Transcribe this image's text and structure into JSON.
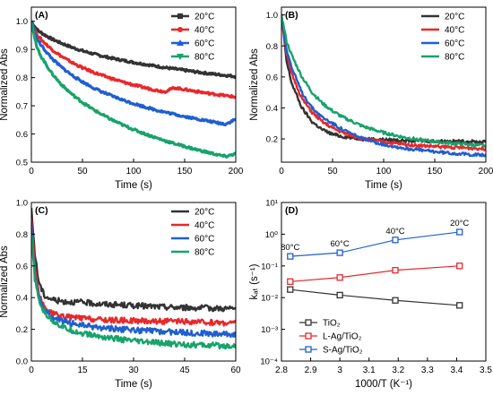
{
  "chart_data": [
    {
      "type": "line",
      "panel_label": "(A)",
      "xlabel": "Time (s)",
      "ylabel": "Normalized Abs",
      "xlim": [
        0,
        200
      ],
      "ylim": [
        0.5,
        1.05
      ],
      "xticks": [
        0,
        50,
        100,
        150,
        200
      ],
      "yticks": [
        0.5,
        0.6,
        0.7,
        0.8,
        0.9,
        1.0
      ],
      "ytick_labels": [
        "0.5",
        "0.6",
        "0.7",
        "0.8",
        "0.9",
        "1.0"
      ],
      "legend_position": "top-right",
      "series": [
        {
          "name": "20°C",
          "color": "#333333",
          "marker": "square",
          "x": [
            0,
            5,
            10,
            20,
            30,
            40,
            50,
            60,
            70,
            80,
            90,
            100,
            110,
            120,
            130,
            140,
            150,
            160,
            170,
            180,
            190,
            200
          ],
          "y": [
            1.0,
            0.972,
            0.958,
            0.937,
            0.921,
            0.907,
            0.895,
            0.885,
            0.876,
            0.868,
            0.861,
            0.854,
            0.848,
            0.842,
            0.836,
            0.831,
            0.826,
            0.821,
            0.816,
            0.812,
            0.808,
            0.804
          ]
        },
        {
          "name": "40°C",
          "color": "#e8282b",
          "marker": "circle",
          "x": [
            0,
            5,
            10,
            20,
            30,
            40,
            50,
            60,
            70,
            80,
            90,
            100,
            110,
            120,
            130,
            140,
            150,
            160,
            170,
            180,
            190,
            200
          ],
          "y": [
            1.0,
            0.955,
            0.933,
            0.9,
            0.874,
            0.853,
            0.835,
            0.82,
            0.807,
            0.795,
            0.784,
            0.774,
            0.765,
            0.757,
            0.75,
            0.764,
            0.758,
            0.752,
            0.746,
            0.741,
            0.736,
            0.731
          ]
        },
        {
          "name": "60°C",
          "color": "#1f5fd1",
          "marker": "triangle",
          "x": [
            0,
            5,
            10,
            20,
            30,
            40,
            50,
            60,
            70,
            80,
            90,
            100,
            110,
            120,
            130,
            140,
            150,
            160,
            170,
            180,
            190,
            200
          ],
          "y": [
            1.0,
            0.94,
            0.912,
            0.868,
            0.835,
            0.808,
            0.785,
            0.765,
            0.748,
            0.733,
            0.72,
            0.708,
            0.697,
            0.687,
            0.678,
            0.67,
            0.662,
            0.655,
            0.648,
            0.641,
            0.635,
            0.652
          ]
        },
        {
          "name": "80°C",
          "color": "#17a36b",
          "marker": "triangle-down",
          "x": [
            0,
            5,
            10,
            20,
            30,
            40,
            50,
            60,
            70,
            80,
            90,
            100,
            110,
            120,
            130,
            140,
            150,
            160,
            170,
            180,
            190,
            200
          ],
          "y": [
            1.0,
            0.91,
            0.872,
            0.815,
            0.773,
            0.74,
            0.712,
            0.688,
            0.667,
            0.648,
            0.631,
            0.616,
            0.602,
            0.589,
            0.577,
            0.566,
            0.556,
            0.546,
            0.537,
            0.528,
            0.52,
            0.53
          ]
        }
      ]
    },
    {
      "type": "line",
      "panel_label": "(B)",
      "xlabel": "Time (s)",
      "ylabel": "Normalized Abs",
      "xlim": [
        0,
        200
      ],
      "ylim": [
        0.05,
        1.05
      ],
      "xticks": [
        0,
        50,
        100,
        150,
        200
      ],
      "yticks": [
        0.2,
        0.4,
        0.6,
        0.8,
        1.0
      ],
      "ytick_labels": [
        "0.2",
        "0.4",
        "0.6",
        "0.8",
        "1.0"
      ],
      "legend_position": "top-right",
      "series": [
        {
          "name": "20°C",
          "color": "#333333",
          "x": [
            0,
            5,
            10,
            20,
            30,
            40,
            50,
            60,
            80,
            100,
            120,
            140,
            160,
            180,
            200
          ],
          "y": [
            1.0,
            0.7,
            0.56,
            0.4,
            0.31,
            0.26,
            0.23,
            0.215,
            0.2,
            0.195,
            0.19,
            0.187,
            0.185,
            0.183,
            0.18
          ]
        },
        {
          "name": "40°C",
          "color": "#e8282b",
          "x": [
            0,
            5,
            10,
            20,
            30,
            40,
            50,
            60,
            80,
            100,
            120,
            140,
            160,
            180,
            200
          ],
          "y": [
            1.0,
            0.75,
            0.62,
            0.46,
            0.37,
            0.31,
            0.27,
            0.24,
            0.2,
            0.18,
            0.165,
            0.155,
            0.148,
            0.142,
            0.137
          ]
        },
        {
          "name": "60°C",
          "color": "#1f5fd1",
          "x": [
            0,
            5,
            10,
            20,
            30,
            40,
            50,
            60,
            80,
            100,
            120,
            140,
            160,
            180,
            200
          ],
          "y": [
            1.0,
            0.78,
            0.66,
            0.5,
            0.4,
            0.34,
            0.3,
            0.26,
            0.2,
            0.165,
            0.14,
            0.125,
            0.112,
            0.102,
            0.095
          ]
        },
        {
          "name": "80°C",
          "color": "#17a36b",
          "x": [
            0,
            5,
            10,
            20,
            30,
            40,
            50,
            60,
            80,
            100,
            120,
            140,
            160,
            180,
            200
          ],
          "y": [
            1.0,
            0.83,
            0.74,
            0.6,
            0.5,
            0.43,
            0.38,
            0.34,
            0.28,
            0.24,
            0.21,
            0.19,
            0.175,
            0.165,
            0.155
          ]
        }
      ]
    },
    {
      "type": "line",
      "panel_label": "(C)",
      "xlabel": "Time (s)",
      "ylabel": "Normalized Abs",
      "xlim": [
        0,
        60
      ],
      "ylim": [
        0.0,
        1.0
      ],
      "xticks": [
        0,
        15,
        30,
        45,
        60
      ],
      "yticks": [
        0.0,
        0.2,
        0.4,
        0.6,
        0.8,
        1.0
      ],
      "ytick_labels": [
        "0.0",
        "0.2",
        "0.4",
        "0.6",
        "0.8",
        "1.0"
      ],
      "legend_position": "top-right",
      "series": [
        {
          "name": "20°C",
          "color": "#333333",
          "x": [
            0,
            1,
            2,
            3,
            4,
            6,
            8,
            10,
            15,
            20,
            30,
            40,
            50,
            60
          ],
          "y": [
            0.95,
            0.68,
            0.52,
            0.45,
            0.41,
            0.39,
            0.38,
            0.375,
            0.37,
            0.36,
            0.35,
            0.34,
            0.335,
            0.33
          ]
        },
        {
          "name": "40°C",
          "color": "#e8282b",
          "x": [
            0,
            1,
            2,
            3,
            4,
            6,
            8,
            10,
            15,
            20,
            30,
            40,
            50,
            60
          ],
          "y": [
            0.9,
            0.6,
            0.45,
            0.37,
            0.33,
            0.3,
            0.29,
            0.28,
            0.27,
            0.26,
            0.255,
            0.25,
            0.245,
            0.24
          ]
        },
        {
          "name": "60°C",
          "color": "#1f5fd1",
          "x": [
            0,
            1,
            2,
            3,
            4,
            6,
            8,
            10,
            15,
            20,
            30,
            40,
            50,
            60
          ],
          "y": [
            0.85,
            0.55,
            0.42,
            0.36,
            0.32,
            0.28,
            0.26,
            0.245,
            0.225,
            0.21,
            0.195,
            0.185,
            0.175,
            0.17
          ]
        },
        {
          "name": "80°C",
          "color": "#17a36b",
          "x": [
            0,
            1,
            2,
            3,
            4,
            6,
            8,
            10,
            15,
            20,
            30,
            40,
            50,
            60
          ],
          "y": [
            0.8,
            0.52,
            0.4,
            0.34,
            0.3,
            0.26,
            0.23,
            0.205,
            0.175,
            0.155,
            0.125,
            0.11,
            0.1,
            0.095
          ]
        }
      ]
    },
    {
      "type": "scatter",
      "panel_label": "(D)",
      "xlabel": "1000/T (K⁻¹)",
      "ylabel": "kₐₜ (s⁻¹)",
      "yscale": "log",
      "xlim": [
        2.8,
        3.5
      ],
      "ylim": [
        0.0001,
        10
      ],
      "xticks": [
        2.8,
        2.9,
        3.0,
        3.1,
        3.2,
        3.3,
        3.4,
        3.5
      ],
      "yticks": [
        0.0001,
        0.001,
        0.01,
        0.1,
        1,
        10
      ],
      "ytick_labels": [
        "10⁻⁴",
        "10⁻³",
        "10⁻²",
        "10⁻¹",
        "10⁰",
        "10¹"
      ],
      "legend_position": "bottom-left",
      "annotations": [
        {
          "text": "80°C",
          "x": 2.83,
          "y": 0.2
        },
        {
          "text": "60°C",
          "x": 3.0,
          "y": 0.26
        },
        {
          "text": "40°C",
          "x": 3.19,
          "y": 0.66
        },
        {
          "text": "20°C",
          "x": 3.41,
          "y": 1.17
        }
      ],
      "series": [
        {
          "name": "TiO₂",
          "color": "#333333",
          "marker": "square",
          "x": [
            2.83,
            3.0,
            3.19,
            3.41
          ],
          "y": [
            0.018,
            0.012,
            0.0082,
            0.0057
          ]
        },
        {
          "name": "L-Ag/TiO₂",
          "color": "#e8282b",
          "marker": "square",
          "x": [
            2.83,
            3.0,
            3.19,
            3.41
          ],
          "y": [
            0.032,
            0.043,
            0.073,
            0.1
          ]
        },
        {
          "name": "S-Ag/TiO₂",
          "color": "#1f5fd1",
          "marker": "square",
          "x": [
            2.83,
            3.0,
            3.19,
            3.41
          ],
          "y": [
            0.2,
            0.26,
            0.66,
            1.17
          ]
        }
      ]
    }
  ]
}
